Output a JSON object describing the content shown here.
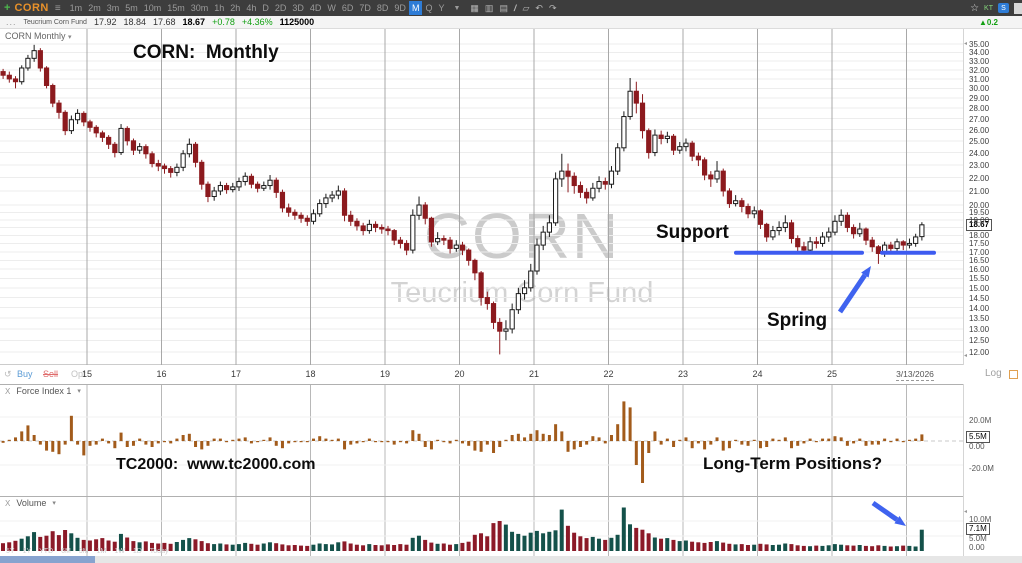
{
  "toolbar": {
    "symbol": "CORN",
    "timeframes": [
      "1m",
      "2m",
      "3m",
      "5m",
      "10m",
      "15m",
      "30m",
      "1h",
      "2h",
      "4h",
      "D",
      "2D",
      "3D",
      "4D",
      "W",
      "6D",
      "7D",
      "8D",
      "9D",
      "M",
      "Q",
      "Y"
    ],
    "active_timeframe": "M",
    "right_text": "KT"
  },
  "icons": {
    "app_plus": "+",
    "menu": "≡",
    "dropdown": "▼",
    "caret": "▾",
    "chart_type": "▦",
    "indicators": "▥",
    "notes": "▤",
    "pencil": "/",
    "eraser": "▱",
    "undo": "↶",
    "share": "↷",
    "star": "☆",
    "badge_letter": "S",
    "mini_up": "▲",
    "refresh": "↺",
    "collapse": "◂"
  },
  "quote": {
    "menu_dots": "...",
    "company": "Teucrium Corn Fund",
    "open": "17.92",
    "high": "18.84",
    "low": "17.68",
    "last": "18.67",
    "change": "+0.78",
    "change_pct": "+4.36%",
    "volume": "1125000",
    "mini_change": "0.2"
  },
  "chart": {
    "instrument_label": "CORN Monthly",
    "annotation_title": "CORN:  Monthly",
    "watermark_line1": "CORN",
    "watermark_line2": "Teucrium Corn Fund",
    "support_label": "Support",
    "spring_label": "Spring",
    "scale_label": "Log",
    "trade": {
      "buy": "Buy",
      "sell": "Sell",
      "opt": "Opt"
    },
    "x_labels": [
      "15",
      "16",
      "17",
      "18",
      "19",
      "20",
      "21",
      "22",
      "23",
      "24",
      "25"
    ],
    "last_date_label": "3/13/2026",
    "last_price_label": "18.67"
  },
  "force_index": {
    "close_button": "X",
    "title": "Force Index 1",
    "axis_top": "20.0M",
    "axis_zero": "0.00",
    "axis_bottom": "-20.0M",
    "current_value": "5.5M",
    "annotation_left": "TC2000:  www.tc2000.com",
    "annotation_right": "Long-Term Positions?"
  },
  "volume_panel": {
    "close_button": "X",
    "title": "Volume",
    "axis_top": "10.0M",
    "axis_mid": "5.0M",
    "axis_zero": "0.00",
    "current_value": "7.1M"
  },
  "zoom_presets": [
    "5Y",
    "1Y",
    "YTD",
    "6M",
    "3M",
    "1M",
    "1W",
    "1D",
    "Today"
  ],
  "colors": {
    "up": "#ffffff",
    "up_border": "#1a1a1a",
    "down": "#8c1a1e",
    "volume_up": "#14514a",
    "volume_down": "#8c1a28",
    "force": "#a25b1b",
    "support_line": "#3d5bf0",
    "arrow": "#3f63ef",
    "grid_h": "#ededed",
    "grid_v": "#a8a8a8",
    "zero_dash": "#c9c9c9"
  },
  "chart_data": {
    "type": "candlestick",
    "symbol": "CORN",
    "timeframe": "Monthly",
    "start_month": "2013-11",
    "end_month": "2026-03",
    "price_scale": "log",
    "price_ticks": [
      35,
      34,
      33,
      32,
      31,
      30,
      29,
      28,
      27,
      26,
      25,
      24,
      23,
      22,
      21,
      20,
      19.5,
      19,
      18.5,
      18,
      17.5,
      17,
      16.5,
      16,
      15.5,
      15,
      14.5,
      14,
      13.5,
      13,
      12.5,
      12
    ],
    "hidden_tick": 18.5,
    "last_price": 18.67,
    "support_level": 17.0,
    "support_segments_x": [
      [
        736,
        862
      ],
      [
        882,
        934
      ]
    ],
    "year_gridlines_x": [
      87,
      161.5,
      236,
      310.5,
      385,
      459.5,
      534,
      608.5,
      683,
      757.5,
      832,
      906.5
    ],
    "force_axis": {
      "max": 20,
      "min": -20
    },
    "volume_axis_ticks": [
      5,
      10
    ],
    "ohlc": [
      [
        31.8,
        32.1,
        31.0,
        31.4
      ],
      [
        31.4,
        31.8,
        30.6,
        31.0
      ],
      [
        31.0,
        31.3,
        30.0,
        30.7
      ],
      [
        30.7,
        32.5,
        30.4,
        32.2
      ],
      [
        32.2,
        33.7,
        31.9,
        33.3
      ],
      [
        33.3,
        34.9,
        32.9,
        34.2
      ],
      [
        34.2,
        34.5,
        31.8,
        32.2
      ],
      [
        32.2,
        32.4,
        30.0,
        30.3
      ],
      [
        30.3,
        30.5,
        28.1,
        28.5
      ],
      [
        28.5,
        28.8,
        27.0,
        27.6
      ],
      [
        27.6,
        27.8,
        25.5,
        25.9
      ],
      [
        25.9,
        27.3,
        25.6,
        26.9
      ],
      [
        26.9,
        27.9,
        26.5,
        27.5
      ],
      [
        27.5,
        27.7,
        26.3,
        26.7
      ],
      [
        26.7,
        26.9,
        25.8,
        26.2
      ],
      [
        26.2,
        26.4,
        25.3,
        25.7
      ],
      [
        25.7,
        25.9,
        24.9,
        25.3
      ],
      [
        25.3,
        25.5,
        24.3,
        24.7
      ],
      [
        24.7,
        24.9,
        23.6,
        24.0
      ],
      [
        24.0,
        26.5,
        23.8,
        26.1
      ],
      [
        26.1,
        26.3,
        24.6,
        25.0
      ],
      [
        25.0,
        25.2,
        23.8,
        24.2
      ],
      [
        24.2,
        24.8,
        23.9,
        24.5
      ],
      [
        24.5,
        24.7,
        23.5,
        23.9
      ],
      [
        23.9,
        24.1,
        22.8,
        23.1
      ],
      [
        23.1,
        23.4,
        22.5,
        22.9
      ],
      [
        22.9,
        23.1,
        22.3,
        22.7
      ],
      [
        22.7,
        22.9,
        22.0,
        22.4
      ],
      [
        22.4,
        23.1,
        22.1,
        22.8
      ],
      [
        22.8,
        24.2,
        22.5,
        23.9
      ],
      [
        23.9,
        25.2,
        23.6,
        24.7
      ],
      [
        24.7,
        24.9,
        22.8,
        23.2
      ],
      [
        23.2,
        23.4,
        21.1,
        21.5
      ],
      [
        21.5,
        21.7,
        20.2,
        20.6
      ],
      [
        20.6,
        21.3,
        20.3,
        21.0
      ],
      [
        21.0,
        21.7,
        20.7,
        21.4
      ],
      [
        21.4,
        21.6,
        20.8,
        21.1
      ],
      [
        21.1,
        21.6,
        20.9,
        21.3
      ],
      [
        21.3,
        22.0,
        21.0,
        21.7
      ],
      [
        21.7,
        22.4,
        21.4,
        22.1
      ],
      [
        22.1,
        22.3,
        21.2,
        21.5
      ],
      [
        21.5,
        21.7,
        20.9,
        21.2
      ],
      [
        21.2,
        21.7,
        21.0,
        21.4
      ],
      [
        21.4,
        22.2,
        21.1,
        21.8
      ],
      [
        21.8,
        22.0,
        20.5,
        20.9
      ],
      [
        20.9,
        21.1,
        19.5,
        19.8
      ],
      [
        19.8,
        20.1,
        19.2,
        19.5
      ],
      [
        19.5,
        19.7,
        19.0,
        19.3
      ],
      [
        19.3,
        19.5,
        18.8,
        19.1
      ],
      [
        19.1,
        19.3,
        18.6,
        18.9
      ],
      [
        18.9,
        19.7,
        18.7,
        19.4
      ],
      [
        19.4,
        20.4,
        19.2,
        20.1
      ],
      [
        20.1,
        20.8,
        19.8,
        20.5
      ],
      [
        20.5,
        21.0,
        20.2,
        20.7
      ],
      [
        20.7,
        21.4,
        20.4,
        21.0
      ],
      [
        21.0,
        21.2,
        18.9,
        19.3
      ],
      [
        19.3,
        19.6,
        18.6,
        18.9
      ],
      [
        18.9,
        19.1,
        18.3,
        18.6
      ],
      [
        18.6,
        18.8,
        18.0,
        18.3
      ],
      [
        18.3,
        19.0,
        18.1,
        18.7
      ],
      [
        18.7,
        18.9,
        18.2,
        18.5
      ],
      [
        18.5,
        18.7,
        18.1,
        18.4
      ],
      [
        18.4,
        18.6,
        18.0,
        18.3
      ],
      [
        18.3,
        18.4,
        17.4,
        17.7
      ],
      [
        17.7,
        17.9,
        17.2,
        17.5
      ],
      [
        17.5,
        17.7,
        16.8,
        17.1
      ],
      [
        17.1,
        19.7,
        16.9,
        19.3
      ],
      [
        19.3,
        20.6,
        19.0,
        20.0
      ],
      [
        20.0,
        20.2,
        18.7,
        19.1
      ],
      [
        19.1,
        19.2,
        17.3,
        17.6
      ],
      [
        17.6,
        18.2,
        17.4,
        17.8
      ],
      [
        17.8,
        18.0,
        17.4,
        17.7
      ],
      [
        17.7,
        17.9,
        16.9,
        17.2
      ],
      [
        17.2,
        17.7,
        17.0,
        17.4
      ],
      [
        17.4,
        17.6,
        16.8,
        17.1
      ],
      [
        17.1,
        17.2,
        16.2,
        16.5
      ],
      [
        16.5,
        16.6,
        15.4,
        15.8
      ],
      [
        15.8,
        15.9,
        14.1,
        14.5
      ],
      [
        14.5,
        14.8,
        13.9,
        14.2
      ],
      [
        14.2,
        14.3,
        13.0,
        13.3
      ],
      [
        13.3,
        13.5,
        11.9,
        12.9
      ],
      [
        12.9,
        13.4,
        12.5,
        13.0
      ],
      [
        13.0,
        14.2,
        12.8,
        13.9
      ],
      [
        13.9,
        15.0,
        13.7,
        14.7
      ],
      [
        14.7,
        15.4,
        14.4,
        15.0
      ],
      [
        15.0,
        16.3,
        14.8,
        15.9
      ],
      [
        15.9,
        17.8,
        15.7,
        17.4
      ],
      [
        17.4,
        18.6,
        17.1,
        18.2
      ],
      [
        18.2,
        19.3,
        17.9,
        18.8
      ],
      [
        18.8,
        22.4,
        18.6,
        21.9
      ],
      [
        21.9,
        23.9,
        21.3,
        22.5
      ],
      [
        22.5,
        23.1,
        20.9,
        22.1
      ],
      [
        22.1,
        22.4,
        20.8,
        21.4
      ],
      [
        21.4,
        21.7,
        20.5,
        20.9
      ],
      [
        20.9,
        21.2,
        20.1,
        20.5
      ],
      [
        20.5,
        21.6,
        20.3,
        21.2
      ],
      [
        21.2,
        22.1,
        20.9,
        21.7
      ],
      [
        21.7,
        22.0,
        21.1,
        21.5
      ],
      [
        21.5,
        22.9,
        21.2,
        22.5
      ],
      [
        22.5,
        24.8,
        22.2,
        24.4
      ],
      [
        24.4,
        27.7,
        24.1,
        27.2
      ],
      [
        27.2,
        31.1,
        26.9,
        29.7
      ],
      [
        29.7,
        30.7,
        27.5,
        28.5
      ],
      [
        28.5,
        29.4,
        25.2,
        25.9
      ],
      [
        25.9,
        26.1,
        23.5,
        24.0
      ],
      [
        24.0,
        26.0,
        23.7,
        25.5
      ],
      [
        25.5,
        25.9,
        24.7,
        25.2
      ],
      [
        25.2,
        25.8,
        24.8,
        25.4
      ],
      [
        25.4,
        25.6,
        23.8,
        24.2
      ],
      [
        24.2,
        24.9,
        23.9,
        24.5
      ],
      [
        24.5,
        25.2,
        24.1,
        24.8
      ],
      [
        24.8,
        25.0,
        23.3,
        23.7
      ],
      [
        23.7,
        24.0,
        22.9,
        23.4
      ],
      [
        23.4,
        23.6,
        21.8,
        22.2
      ],
      [
        22.2,
        22.5,
        21.3,
        21.9
      ],
      [
        21.9,
        23.3,
        21.6,
        22.5
      ],
      [
        22.5,
        22.7,
        20.6,
        21.0
      ],
      [
        21.0,
        21.2,
        19.8,
        20.1
      ],
      [
        20.1,
        20.7,
        19.9,
        20.3
      ],
      [
        20.3,
        20.5,
        19.5,
        19.9
      ],
      [
        19.9,
        20.1,
        19.1,
        19.4
      ],
      [
        19.4,
        19.9,
        19.1,
        19.6
      ],
      [
        19.6,
        19.7,
        18.4,
        18.7
      ],
      [
        18.7,
        18.8,
        17.6,
        17.9
      ],
      [
        17.9,
        18.6,
        17.7,
        18.3
      ],
      [
        18.3,
        18.9,
        18.0,
        18.5
      ],
      [
        18.5,
        19.3,
        18.2,
        18.8
      ],
      [
        18.8,
        19.0,
        17.5,
        17.8
      ],
      [
        17.8,
        18.0,
        17.0,
        17.3
      ],
      [
        17.3,
        17.6,
        16.9,
        17.1
      ],
      [
        17.1,
        17.9,
        16.9,
        17.6
      ],
      [
        17.6,
        17.9,
        17.2,
        17.5
      ],
      [
        17.5,
        18.2,
        17.3,
        17.9
      ],
      [
        17.9,
        18.5,
        17.6,
        18.2
      ],
      [
        18.2,
        19.3,
        18.0,
        18.9
      ],
      [
        18.9,
        19.7,
        18.6,
        19.3
      ],
      [
        19.3,
        19.5,
        18.2,
        18.5
      ],
      [
        18.5,
        18.7,
        17.8,
        18.1
      ],
      [
        18.1,
        18.8,
        17.9,
        18.4
      ],
      [
        18.4,
        18.5,
        17.4,
        17.7
      ],
      [
        17.7,
        17.9,
        17.0,
        17.3
      ],
      [
        17.3,
        17.4,
        16.3,
        16.9
      ],
      [
        16.9,
        17.6,
        16.7,
        17.4
      ],
      [
        17.4,
        17.6,
        16.9,
        17.2
      ],
      [
        17.2,
        17.8,
        17.0,
        17.6
      ],
      [
        17.6,
        17.7,
        17.1,
        17.4
      ],
      [
        17.4,
        17.8,
        17.2,
        17.5
      ],
      [
        17.5,
        18.1,
        17.3,
        17.9
      ],
      [
        17.92,
        18.84,
        17.68,
        18.67
      ]
    ],
    "volume": [
      2.6,
      2.9,
      3.4,
      4.1,
      4.9,
      6.3,
      4.7,
      5.1,
      6.6,
      5.3,
      7.0,
      5.9,
      4.4,
      3.7,
      3.5,
      3.9,
      4.3,
      3.5,
      3.1,
      5.7,
      4.5,
      3.3,
      2.9,
      3.2,
      2.7,
      2.5,
      2.7,
      2.4,
      3.0,
      3.7,
      4.3,
      3.9,
      3.3,
      2.6,
      2.3,
      2.5,
      2.2,
      2.1,
      2.3,
      2.7,
      2.4,
      2.1,
      2.5,
      2.9,
      2.6,
      2.2,
      1.9,
      2.0,
      1.8,
      1.7,
      2.1,
      2.5,
      2.3,
      2.2,
      2.9,
      3.2,
      2.5,
      2.1,
      1.9,
      2.3,
      2.0,
      1.9,
      2.2,
      2.0,
      2.3,
      2.1,
      4.4,
      5.1,
      3.7,
      2.8,
      2.4,
      2.5,
      2.1,
      2.3,
      2.7,
      3.1,
      5.4,
      5.9,
      4.9,
      9.3,
      10.0,
      8.8,
      6.4,
      5.7,
      5.1,
      6.1,
      6.7,
      5.9,
      6.4,
      6.9,
      13.8,
      8.4,
      6.1,
      4.9,
      4.3,
      4.7,
      4.1,
      3.7,
      4.4,
      5.4,
      14.5,
      8.9,
      7.7,
      7.1,
      5.9,
      4.5,
      4.1,
      4.3,
      3.7,
      3.3,
      3.5,
      3.1,
      2.9,
      2.7,
      3.0,
      3.3,
      2.8,
      2.4,
      2.2,
      2.3,
      2.0,
      2.1,
      2.4,
      2.2,
      2.0,
      2.1,
      2.5,
      2.3,
      1.9,
      1.7,
      1.6,
      1.8,
      1.7,
      1.9,
      2.3,
      2.1,
      1.9,
      1.8,
      2.0,
      1.7,
      1.6,
      1.9,
      1.7,
      1.5,
      1.6,
      1.8,
      1.7,
      1.5,
      7.1
    ],
    "force_index": [
      -1.5,
      1,
      3,
      8,
      13,
      5,
      -3,
      -8,
      -9,
      -11,
      -3,
      21,
      -3,
      -12,
      -4,
      -3,
      2,
      -2,
      -6,
      7,
      -5,
      -4,
      2,
      -3,
      -5,
      -2,
      -1,
      -2,
      2,
      5,
      6,
      -5,
      -7,
      -4,
      2,
      2,
      -1,
      1,
      2,
      3,
      -2,
      -1,
      1,
      3,
      -4,
      -6,
      -2,
      -1,
      -1,
      -1,
      2,
      4,
      2,
      1,
      2,
      -7,
      -3,
      -2,
      -1,
      2,
      -1,
      -1,
      -1,
      -3,
      -1,
      -2,
      9,
      6,
      -5,
      -7,
      1,
      -1,
      -2,
      1,
      -2,
      -4,
      -8,
      -9,
      -3,
      -10,
      -5,
      1,
      5,
      6,
      3,
      6,
      9,
      6,
      5,
      14,
      8,
      -9,
      -7,
      -5,
      -3,
      4,
      3,
      -2,
      5,
      14,
      33,
      28,
      -20,
      -35,
      -10,
      8,
      -3,
      2,
      -5,
      1,
      3,
      -6,
      -2,
      -7,
      -3,
      3,
      -8,
      -6,
      1,
      -3,
      -4,
      1,
      -6,
      -5,
      2,
      1,
      3,
      -6,
      -4,
      -2,
      2,
      -1,
      2,
      2,
      4,
      3,
      -4,
      -2,
      2,
      -4,
      -3,
      -3,
      2,
      -1,
      2,
      -1,
      1,
      2,
      5.5
    ]
  }
}
